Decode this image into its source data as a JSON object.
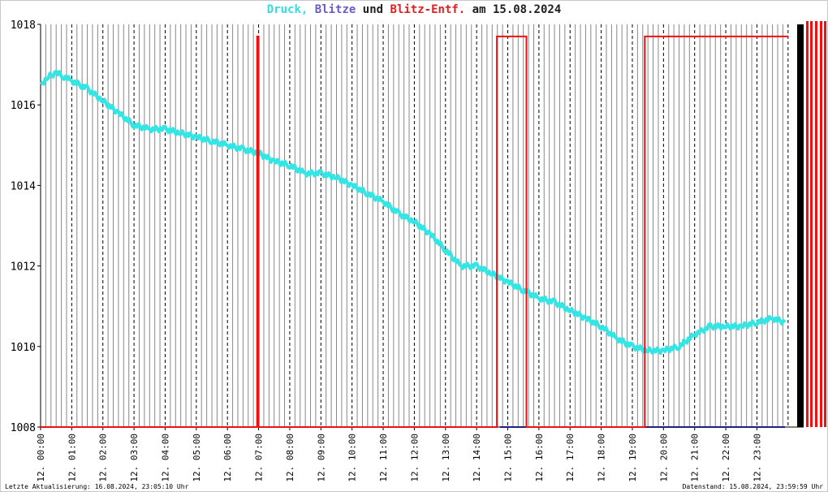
{
  "title": {
    "druck": "Druck,",
    "blitze": "Blitze",
    "und": "und",
    "dist": "Blitz-Entf.",
    "am_date": "am 15.08.2024"
  },
  "footer": {
    "left": "Letzte Aktualisierung: 16.08.2024, 23:05:10 Uhr",
    "right": "Datenstand: 15.08.2024, 23:59:59 Uhr"
  },
  "colors": {
    "druck": "#33e6e6",
    "blitze": "#202080",
    "dist": "#ee1111",
    "grid_solid": "#888888",
    "grid_dashed": "#000000"
  },
  "chart_data": {
    "type": "line",
    "ylim": [
      1008,
      1018
    ],
    "yticks": [
      "1008",
      "1010",
      "1012",
      "1014",
      "1016",
      "1018"
    ],
    "xlim": [
      0,
      24.5
    ],
    "xtick_labels": [
      "12. 00:00",
      "12. 01:00",
      "12. 02:00",
      "12. 03:00",
      "12. 04:00",
      "12. 05:00",
      "12. 06:00",
      "12. 07:00",
      "12. 08:00",
      "12. 09:00",
      "12. 10:00",
      "12. 11:00",
      "12. 12:00",
      "12. 13:00",
      "12. 14:00",
      "12. 15:00",
      "12. 16:00",
      "12. 17:00",
      "12. 18:00",
      "12. 19:00",
      "12. 20:00",
      "12. 21:00",
      "12. 22:00",
      "12. 23:00"
    ],
    "grid": true,
    "series": [
      {
        "name": "Druck",
        "x": [
          0,
          0.25,
          0.5,
          0.75,
          1.0,
          1.5,
          2.0,
          2.5,
          3.0,
          3.5,
          4.0,
          4.5,
          5.0,
          5.5,
          6.0,
          6.5,
          7.0,
          7.5,
          8.0,
          8.5,
          9.0,
          9.5,
          10.0,
          10.5,
          11.0,
          11.5,
          12.0,
          12.5,
          13.0,
          13.5,
          14.0,
          14.5,
          15.0,
          15.5,
          16.0,
          16.5,
          17.0,
          17.5,
          18.0,
          18.5,
          19.0,
          19.5,
          20.0,
          20.5,
          21.0,
          21.5,
          22.0,
          22.5,
          23.0,
          23.5,
          23.9
        ],
        "y": [
          1016.5,
          1016.7,
          1016.8,
          1016.7,
          1016.6,
          1016.4,
          1016.1,
          1015.8,
          1015.5,
          1015.4,
          1015.4,
          1015.3,
          1015.2,
          1015.1,
          1015.0,
          1014.9,
          1014.8,
          1014.6,
          1014.5,
          1014.3,
          1014.3,
          1014.2,
          1014.0,
          1013.8,
          1013.6,
          1013.3,
          1013.1,
          1012.8,
          1012.4,
          1012.0,
          1012.0,
          1011.8,
          1011.6,
          1011.4,
          1011.2,
          1011.1,
          1010.9,
          1010.7,
          1010.5,
          1010.2,
          1010.0,
          1009.9,
          1009.9,
          1010.0,
          1010.3,
          1010.5,
          1010.5,
          1010.5,
          1010.6,
          1010.7,
          1010.6
        ]
      },
      {
        "name": "Blitze",
        "x": [
          14.75,
          15.65,
          19.4,
          23.9
        ],
        "y": [
          1008.0,
          1008.0,
          1008.0,
          1008.0
        ]
      },
      {
        "name": "Blitz-Entf.",
        "x": [
          0,
          6.95,
          6.95,
          7.0,
          7.0,
          14.65,
          14.65,
          15.6,
          15.6,
          19.4,
          19.4,
          24.0
        ],
        "y": [
          1008.0,
          1008.0,
          1017.7,
          1017.7,
          1008.0,
          1008.0,
          1017.7,
          1017.7,
          1008.0,
          1008.0,
          1017.7,
          1017.7
        ]
      }
    ]
  }
}
